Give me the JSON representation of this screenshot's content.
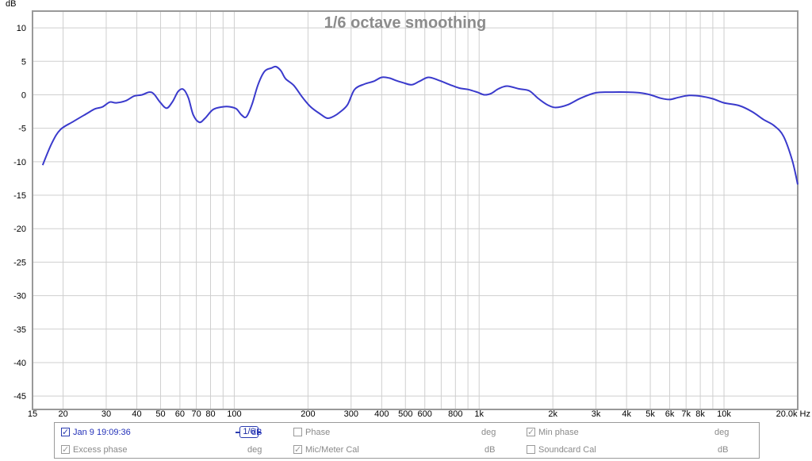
{
  "chart_data": {
    "type": "line",
    "title": "1/6 octave smoothing",
    "ylabel": "dB",
    "xunit": "Hz",
    "xscale": "log",
    "xlim": [
      15,
      20000
    ],
    "ylim": [
      -47,
      12.5
    ],
    "yticks": [
      10,
      5,
      0,
      -5,
      -10,
      -15,
      -20,
      -25,
      -30,
      -35,
      -40,
      -45
    ],
    "xticks": [
      {
        "v": 15,
        "label": "15"
      },
      {
        "v": 20,
        "label": "20"
      },
      {
        "v": 30,
        "label": "30"
      },
      {
        "v": 40,
        "label": "40"
      },
      {
        "v": 50,
        "label": "50"
      },
      {
        "v": 60,
        "label": "60"
      },
      {
        "v": 70,
        "label": "70"
      },
      {
        "v": 80,
        "label": "80"
      },
      {
        "v": 100,
        "label": "100"
      },
      {
        "v": 200,
        "label": "200"
      },
      {
        "v": 300,
        "label": "300"
      },
      {
        "v": 400,
        "label": "400"
      },
      {
        "v": 500,
        "label": "500"
      },
      {
        "v": 600,
        "label": "600"
      },
      {
        "v": 800,
        "label": "800"
      },
      {
        "v": 1000,
        "label": "1k"
      },
      {
        "v": 2000,
        "label": "2k"
      },
      {
        "v": 3000,
        "label": "3k"
      },
      {
        "v": 4000,
        "label": "4k"
      },
      {
        "v": 5000,
        "label": "5k"
      },
      {
        "v": 6000,
        "label": "6k"
      },
      {
        "v": 7000,
        "label": "7k"
      },
      {
        "v": 8000,
        "label": "8k"
      },
      {
        "v": 10000,
        "label": "10k"
      },
      {
        "v": 20000,
        "label": "20.0k Hz"
      }
    ],
    "grid": true,
    "series": [
      {
        "name": "Jan 9 19:09:36",
        "color": "#3a3acc",
        "points": [
          [
            16.5,
            -10.5
          ],
          [
            18,
            -7.2
          ],
          [
            19.5,
            -5.2
          ],
          [
            22,
            -4
          ],
          [
            25,
            -2.8
          ],
          [
            27,
            -2.1
          ],
          [
            29,
            -1.8
          ],
          [
            31,
            -1.1
          ],
          [
            33,
            -1.2
          ],
          [
            36,
            -0.9
          ],
          [
            39,
            -0.2
          ],
          [
            42,
            0.0
          ],
          [
            45,
            0.4
          ],
          [
            47,
            0.1
          ],
          [
            50,
            -1.2
          ],
          [
            53,
            -2.0
          ],
          [
            56,
            -1.0
          ],
          [
            59,
            0.5
          ],
          [
            62,
            0.8
          ],
          [
            65,
            -0.5
          ],
          [
            68,
            -3.0
          ],
          [
            72,
            -4.1
          ],
          [
            76,
            -3.5
          ],
          [
            82,
            -2.2
          ],
          [
            90,
            -1.8
          ],
          [
            96,
            -1.8
          ],
          [
            102,
            -2.1
          ],
          [
            107,
            -3.0
          ],
          [
            112,
            -3.3
          ],
          [
            118,
            -1.5
          ],
          [
            125,
            1.5
          ],
          [
            133,
            3.5
          ],
          [
            142,
            4.0
          ],
          [
            148,
            4.2
          ],
          [
            155,
            3.6
          ],
          [
            162,
            2.4
          ],
          [
            175,
            1.4
          ],
          [
            190,
            -0.4
          ],
          [
            205,
            -1.8
          ],
          [
            225,
            -2.9
          ],
          [
            240,
            -3.5
          ],
          [
            255,
            -3.2
          ],
          [
            270,
            -2.6
          ],
          [
            290,
            -1.5
          ],
          [
            310,
            0.8
          ],
          [
            340,
            1.6
          ],
          [
            370,
            2.0
          ],
          [
            400,
            2.6
          ],
          [
            430,
            2.5
          ],
          [
            460,
            2.1
          ],
          [
            490,
            1.8
          ],
          [
            530,
            1.5
          ],
          [
            570,
            2.0
          ],
          [
            620,
            2.6
          ],
          [
            680,
            2.2
          ],
          [
            760,
            1.5
          ],
          [
            830,
            1.0
          ],
          [
            900,
            0.8
          ],
          [
            980,
            0.4
          ],
          [
            1050,
            0.0
          ],
          [
            1120,
            0.2
          ],
          [
            1200,
            0.9
          ],
          [
            1300,
            1.3
          ],
          [
            1450,
            0.9
          ],
          [
            1600,
            0.6
          ],
          [
            1750,
            -0.6
          ],
          [
            1900,
            -1.5
          ],
          [
            2050,
            -1.9
          ],
          [
            2300,
            -1.5
          ],
          [
            2600,
            -0.5
          ],
          [
            3000,
            0.3
          ],
          [
            3500,
            0.4
          ],
          [
            4000,
            0.4
          ],
          [
            4500,
            0.3
          ],
          [
            5000,
            0.0
          ],
          [
            5500,
            -0.5
          ],
          [
            6000,
            -0.7
          ],
          [
            6500,
            -0.4
          ],
          [
            7200,
            -0.1
          ],
          [
            8000,
            -0.2
          ],
          [
            9000,
            -0.6
          ],
          [
            10000,
            -1.2
          ],
          [
            11500,
            -1.6
          ],
          [
            13000,
            -2.5
          ],
          [
            14500,
            -3.7
          ],
          [
            16000,
            -4.6
          ],
          [
            17500,
            -6.2
          ],
          [
            19000,
            -9.8
          ],
          [
            20000,
            -13.4
          ]
        ]
      }
    ]
  },
  "legend": {
    "row1": [
      {
        "label": "Jan 9 19:09:36",
        "checked": true,
        "active": true
      },
      {
        "smoothing": "1/6"
      },
      {
        "unit": "dB"
      },
      {
        "label": "Phase",
        "checked": false
      },
      {
        "unit": "deg"
      },
      {
        "label": "Min phase",
        "checked": true
      },
      {
        "unit": "deg"
      }
    ],
    "row2": [
      {
        "label": "Excess phase",
        "checked": true
      },
      {
        "unit": "deg"
      },
      {
        "label": "Mic/Meter Cal",
        "checked": true
      },
      {
        "unit": "dB"
      },
      {
        "label": "Soundcard Cal",
        "checked": false
      },
      {
        "unit": "dB"
      }
    ]
  }
}
